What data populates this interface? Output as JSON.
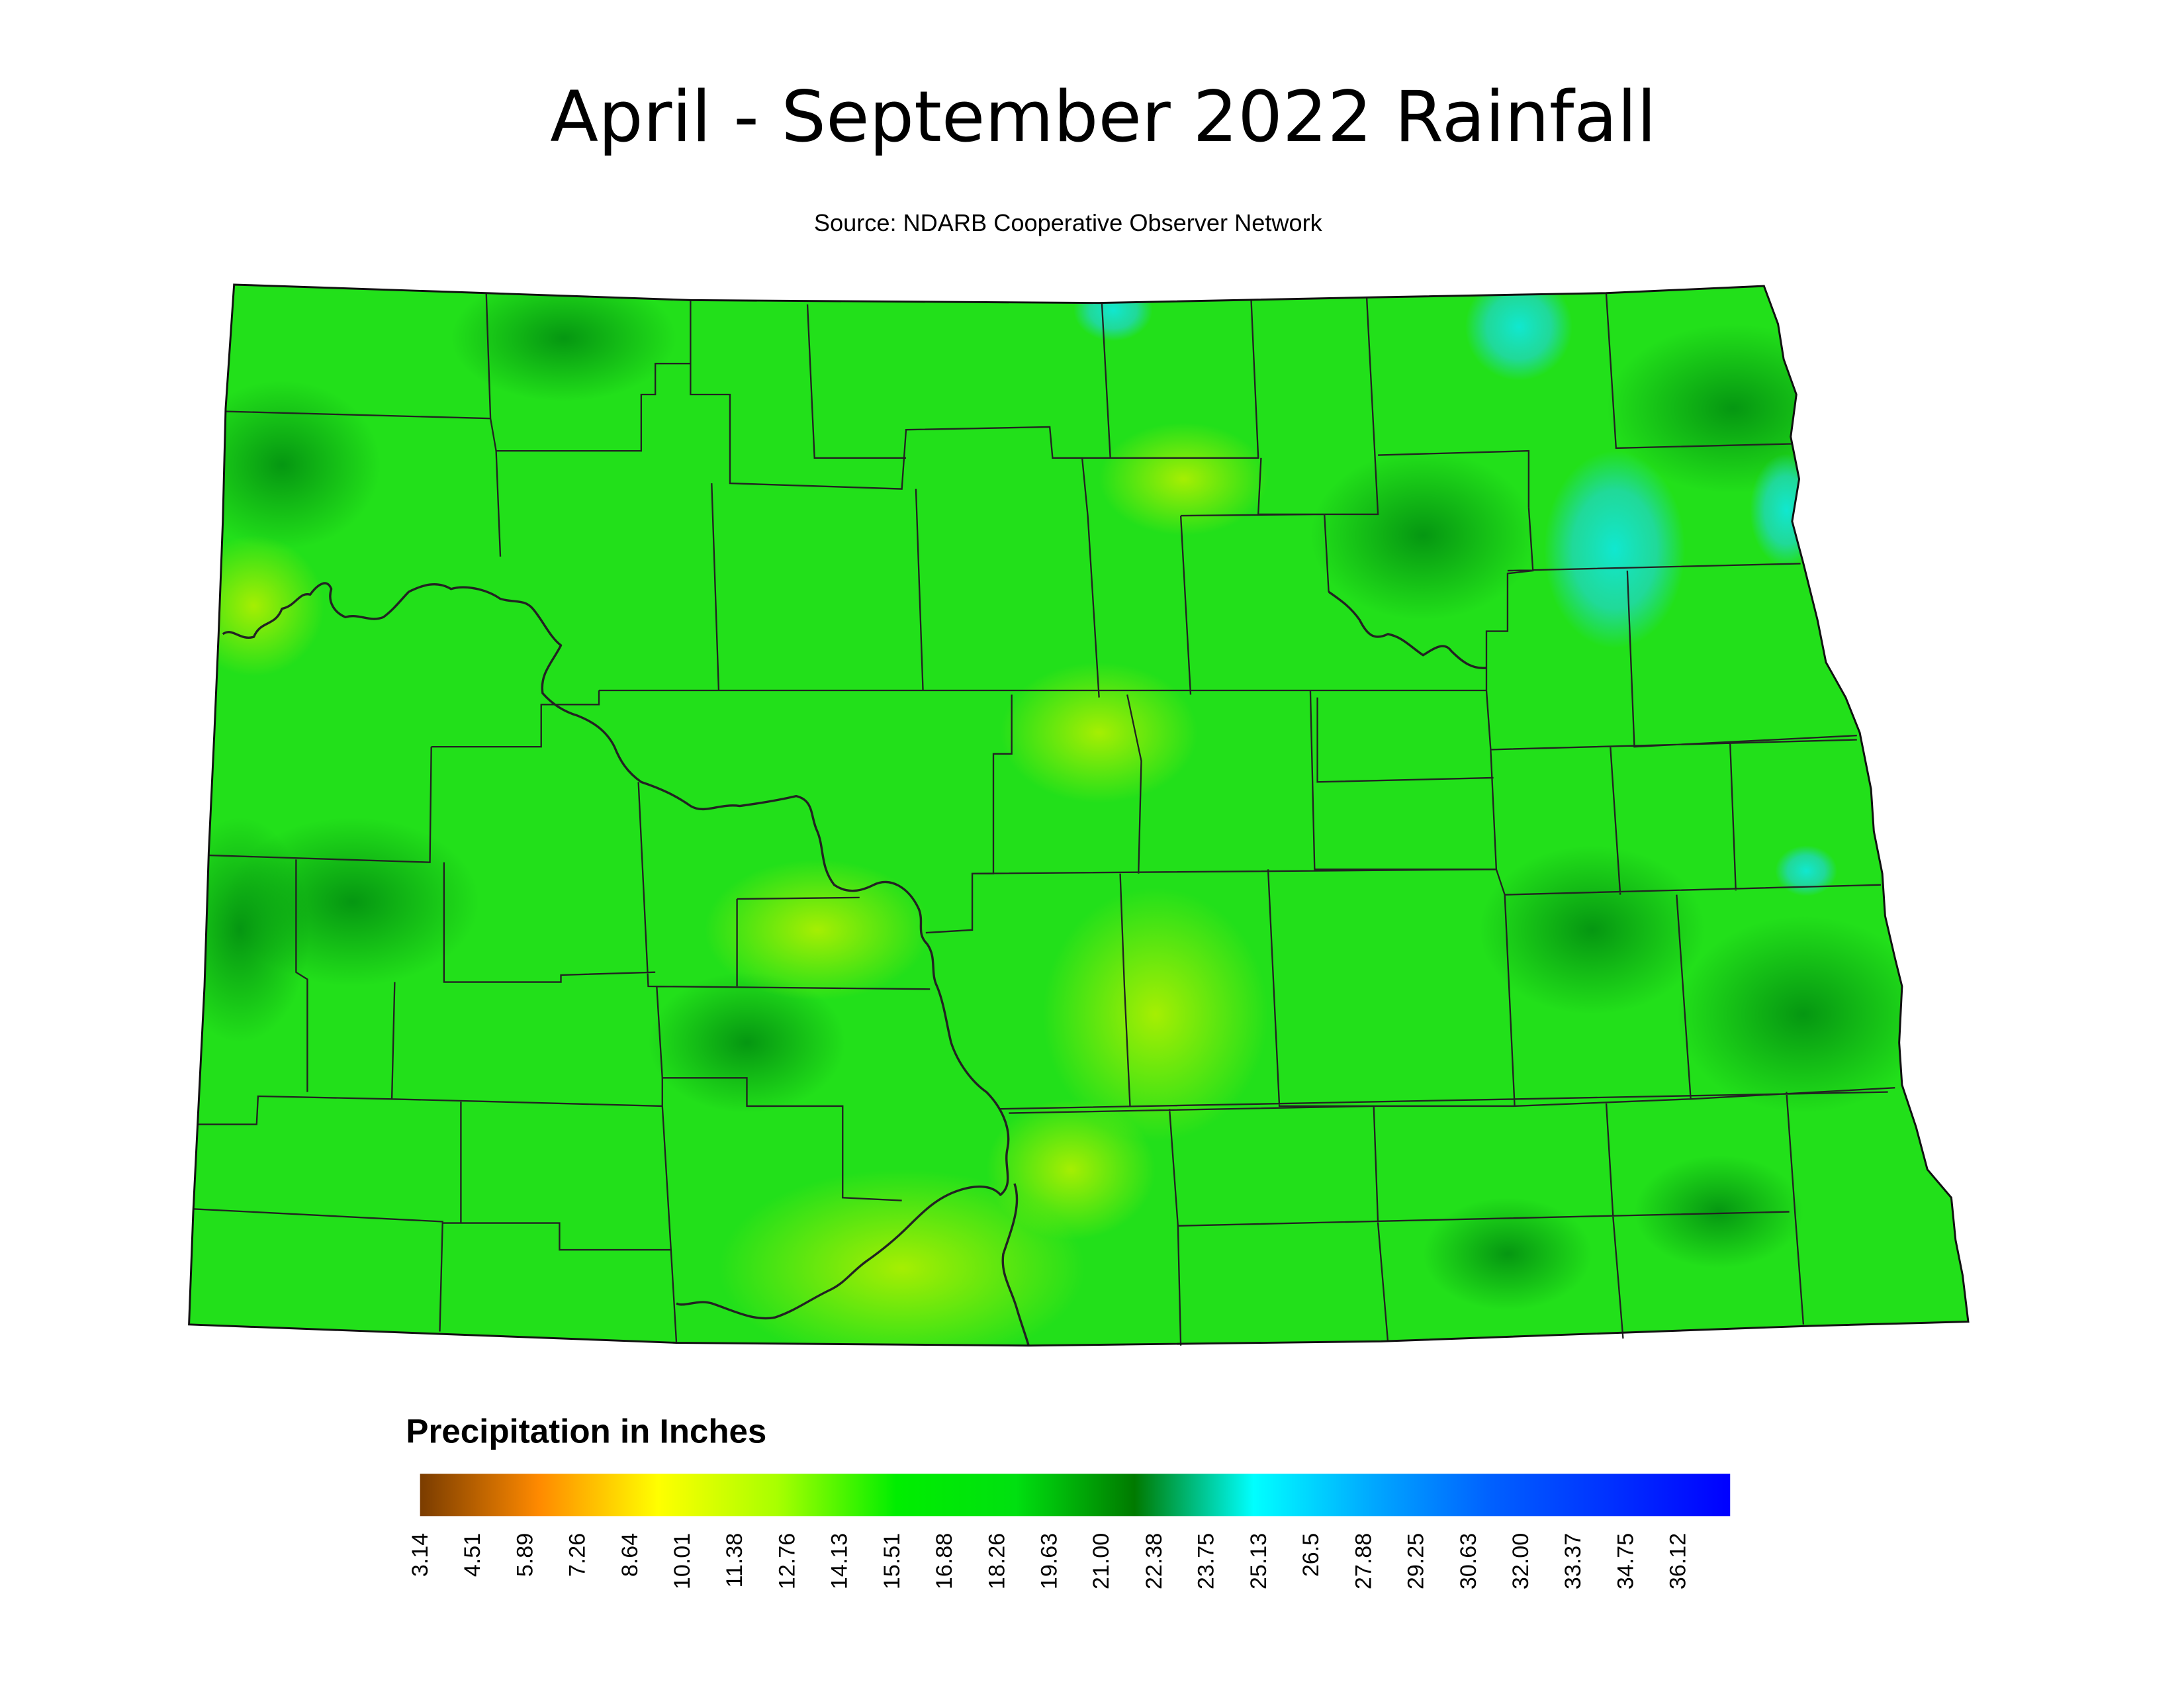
{
  "map": {
    "title": "April - September 2022 Rainfall",
    "subtitle": "Source: NDARB Cooperative Observer Network"
  },
  "legend": {
    "title": "Precipitation in Inches",
    "lim": [
      3.1,
      37.45
    ],
    "colors": [
      "#7a3c00",
      "#ff8a00",
      "#ffff00",
      "#a8ff00",
      "#00ee00",
      "#00e010",
      "#007a00",
      "#00ffff",
      "#00a8ff",
      "#0060ff",
      "#0030ff",
      "#0000ff"
    ],
    "ticks": [
      3.14,
      4.51,
      5.89,
      7.26,
      8.64,
      10.01,
      11.38,
      12.76,
      14.13,
      15.51,
      16.88,
      18.26,
      19.63,
      {
        "value": 21,
        "label": "21.00"
      },
      22.38,
      23.75,
      25.13,
      26.5,
      27.88,
      29.25,
      30.63,
      {
        "value": 32,
        "label": "32.00"
      },
      33.37,
      34.75,
      36.12
    ]
  }
}
